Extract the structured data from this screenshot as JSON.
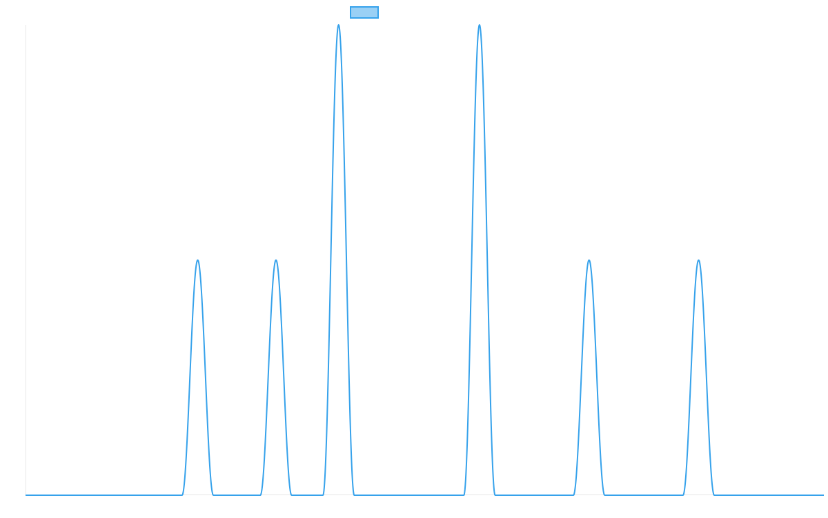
{
  "chart_data": {
    "type": "line",
    "title": "",
    "xlabel": "",
    "ylabel": "",
    "legend": {
      "placement": "top-center",
      "label": ""
    },
    "grid": false,
    "xlim": [
      0,
      51
    ],
    "ylim": [
      0,
      1
    ],
    "peak_width": 1.0,
    "series": [
      {
        "name": "",
        "color": "#36a2eb",
        "fill": "#9ad0f5",
        "peaks": [
          {
            "x": 11,
            "y": 0.5
          },
          {
            "x": 16,
            "y": 0.5
          },
          {
            "x": 20,
            "y": 1.0
          },
          {
            "x": 29,
            "y": 1.0
          },
          {
            "x": 36,
            "y": 0.5
          },
          {
            "x": 43,
            "y": 0.5
          }
        ]
      }
    ]
  }
}
